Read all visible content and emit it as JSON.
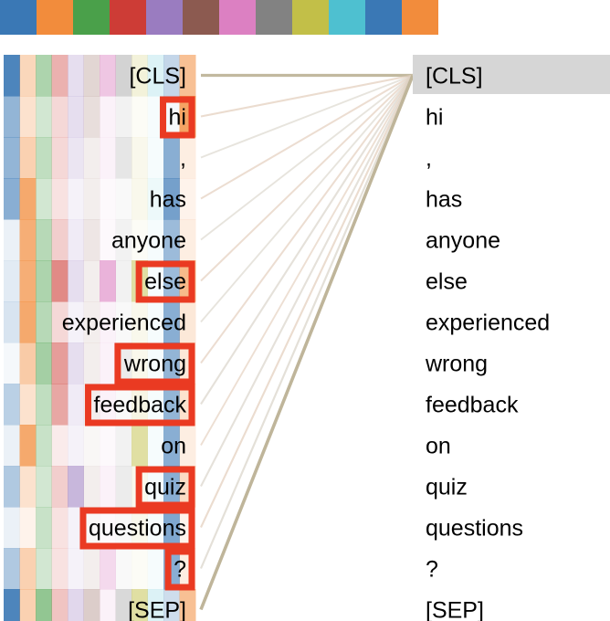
{
  "head_colors": [
    "#3a78b5",
    "#f28c3c",
    "#4aa04a",
    "#cd3c36",
    "#9a7cc0",
    "#8c5a50",
    "#dc80c2",
    "#828282",
    "#c2bf48",
    "#4ec0d0",
    "#3a78b5",
    "#f28c3c"
  ],
  "tokens": [
    "[CLS]",
    "hi",
    ",",
    "has",
    "anyone",
    "else",
    "experienced",
    "wrong",
    "feedback",
    "on",
    "quiz",
    "questions",
    "?",
    "[SEP]"
  ],
  "selected_index": 0,
  "highlighted_indices": [
    1,
    5,
    7,
    8,
    10,
    11,
    12
  ],
  "attention_weights": [
    [
      0.9,
      0.35,
      0.45,
      0.4,
      0.25,
      0.25,
      0.45,
      0.35,
      0.2,
      0.2,
      0.3,
      0.55
    ],
    [
      0.55,
      0.25,
      0.25,
      0.2,
      0.25,
      0.2,
      0.1,
      0.1,
      0.05,
      0.05,
      0.05,
      0.8
    ],
    [
      0.55,
      0.4,
      0.35,
      0.2,
      0.2,
      0.1,
      0.1,
      0.2,
      0.1,
      0.05,
      0.6,
      0.15
    ],
    [
      0.6,
      0.75,
      0.25,
      0.15,
      0.1,
      0.1,
      0.05,
      0.05,
      0.1,
      0.1,
      0.7,
      0.1
    ],
    [
      0.1,
      0.7,
      0.4,
      0.25,
      0.15,
      0.15,
      0.05,
      0.1,
      0.05,
      0.05,
      0.5,
      0.15
    ],
    [
      0.15,
      0.7,
      0.45,
      0.6,
      0.25,
      0.1,
      0.6,
      0.1,
      0.5,
      0.05,
      0.5,
      0.6
    ],
    [
      0.2,
      0.75,
      0.4,
      0.2,
      0.1,
      0.1,
      0.1,
      0.05,
      0.1,
      0.05,
      0.6,
      0.2
    ],
    [
      0.05,
      0.45,
      0.5,
      0.5,
      0.25,
      0.1,
      0.1,
      0.15,
      0.1,
      0.05,
      0.55,
      0.2
    ],
    [
      0.35,
      0.25,
      0.35,
      0.45,
      0.15,
      0.1,
      0.1,
      0.05,
      0.15,
      0.05,
      0.55,
      0.25
    ],
    [
      0.1,
      0.75,
      0.3,
      0.1,
      0.1,
      0.05,
      0.05,
      0.1,
      0.5,
      0.05,
      0.6,
      0.15
    ],
    [
      0.4,
      0.25,
      0.25,
      0.25,
      0.55,
      0.1,
      0.1,
      0.15,
      0.1,
      0.05,
      0.6,
      0.3
    ],
    [
      0.1,
      0.1,
      0.3,
      0.15,
      0.1,
      0.05,
      0.05,
      0.05,
      0.1,
      0.05,
      0.65,
      0.1
    ],
    [
      0.4,
      0.4,
      0.25,
      0.15,
      0.1,
      0.1,
      0.3,
      0.05,
      0.05,
      0.05,
      0.6,
      0.15
    ],
    [
      0.9,
      0.4,
      0.6,
      0.3,
      0.3,
      0.3,
      0.1,
      0.3,
      0.5,
      0.2,
      0.25,
      0.55
    ]
  ],
  "link_weights": [
    0.55,
    0.28,
    0.22,
    0.25,
    0.22,
    0.25,
    0.22,
    0.25,
    0.28,
    0.22,
    0.28,
    0.28,
    0.3,
    0.65
  ]
}
